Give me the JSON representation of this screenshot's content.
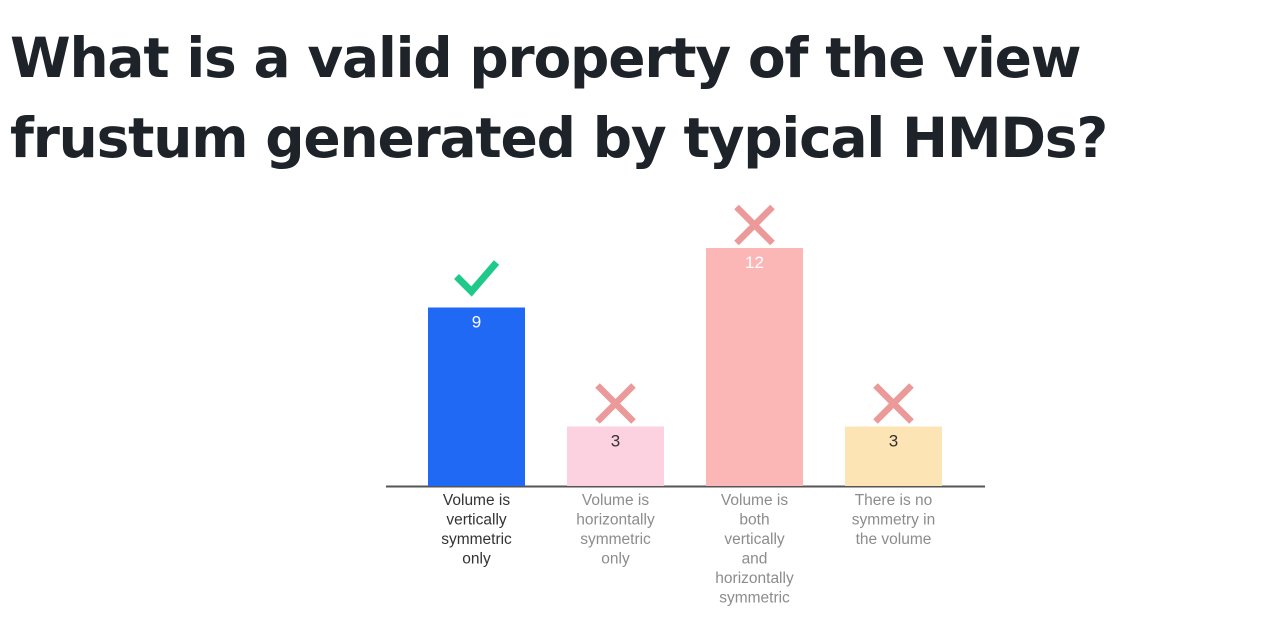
{
  "title": "What is a valid property of the view frustum generated by typical HMDs?",
  "chart_data": {
    "type": "bar",
    "categories": [
      "Volume is vertically symmetric only",
      "Volume is horizontally symmetric only",
      "Volume is both vertically and horizontally symmetric",
      "There is no symmetry in the volume"
    ],
    "category_label_lines": [
      [
        "Volume is",
        "vertically",
        "symmetric",
        "only"
      ],
      [
        "Volume is",
        "horizontally",
        "symmetric",
        "only"
      ],
      [
        "Volume is",
        "both",
        "vertically",
        "and",
        "horizontally",
        "symmetric"
      ],
      [
        "There is no",
        "symmetry in",
        "the volume"
      ]
    ],
    "values": [
      9,
      3,
      12,
      3
    ],
    "correct": [
      true,
      false,
      false,
      false
    ],
    "colors": [
      "#1f69f5",
      "#fcd2e1",
      "#fbb6b6",
      "#fce4b4"
    ],
    "value_label_colors": [
      "#ffffff",
      "#333333",
      "#ffffff",
      "#333333"
    ],
    "category_label_colors": [
      "#333333",
      "#8c8c8c",
      "#8c8c8c",
      "#8c8c8c"
    ],
    "check_color": "#1ec98a",
    "cross_color": "#eb9999",
    "ylim": [
      0,
      12
    ],
    "grid": false,
    "legend": "none"
  }
}
